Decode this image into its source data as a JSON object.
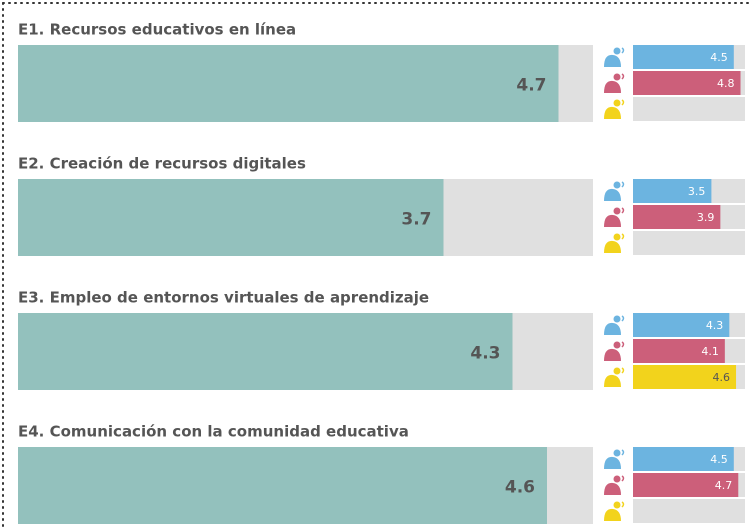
{
  "chart_data": [
    {
      "type": "bar",
      "title": "E1. Recursos educativos en línea",
      "value": 4.7,
      "color": "#93c1bd",
      "xlim": [
        0,
        5
      ],
      "sub_values": [
        4.5,
        4.8,
        null
      ],
      "sub_colors": [
        "#6cb4e0",
        "#cc5f7a",
        "#f2d31c"
      ]
    },
    {
      "type": "bar",
      "title": "E2. Creación de recursos digitales",
      "value": 3.7,
      "color": "#93c1bd",
      "xlim": [
        0,
        5
      ],
      "sub_values": [
        3.5,
        3.9,
        null
      ],
      "sub_colors": [
        "#6cb4e0",
        "#cc5f7a",
        "#f2d31c"
      ]
    },
    {
      "type": "bar",
      "title": "E3. Empleo de entornos virtuales de aprendizaje",
      "value": 4.3,
      "color": "#93c1bd",
      "xlim": [
        0,
        5
      ],
      "sub_values": [
        4.3,
        4.1,
        4.6
      ],
      "sub_colors": [
        "#6cb4e0",
        "#cc5f7a",
        "#f2d31c"
      ]
    },
    {
      "type": "bar",
      "title": "E4. Comunicación con la comunidad educativa",
      "value": 4.6,
      "color": "#93c1bd",
      "xlim": [
        0,
        5
      ],
      "sub_values": [
        4.5,
        4.7,
        null
      ],
      "sub_colors": [
        "#6cb4e0",
        "#cc5f7a",
        "#f2d31c"
      ]
    }
  ]
}
